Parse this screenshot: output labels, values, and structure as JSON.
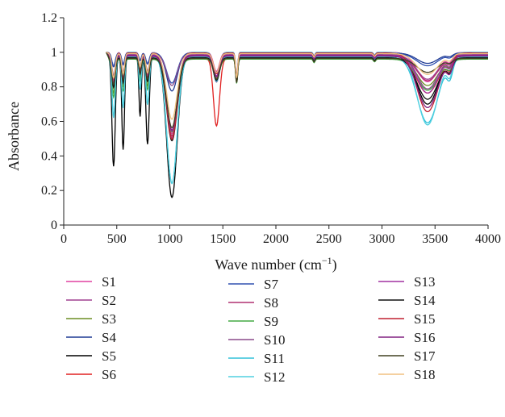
{
  "chart_data": {
    "type": "line",
    "xlabel": "Wave number (cm",
    "xlabel_sup": "−1",
    "xlabel_close": ")",
    "ylabel": "Absorbance",
    "xlim": [
      0,
      4000
    ],
    "ylim": [
      0,
      1.2
    ],
    "x_ticks": [
      "0",
      "500",
      "1000",
      "1500",
      "2000",
      "2500",
      "3000",
      "3500",
      "4000"
    ],
    "y_ticks": [
      "0",
      "0.2",
      "0.4",
      "0.6",
      "0.8",
      "1",
      "1.2"
    ],
    "grid": false,
    "legend_position": "bottom",
    "series": [
      {
        "name": "S1",
        "color": "#e040a0",
        "b1": 0.84,
        "p1": 0.53,
        "p3": 0.89,
        "p4": 0.83
      },
      {
        "name": "S2",
        "color": "#a04090",
        "b1": 0.82,
        "p1": 0.52,
        "p3": 0.9,
        "p4": 0.86
      },
      {
        "name": "S3",
        "color": "#6b8e23",
        "b1": 0.8,
        "p1": 0.55,
        "p3": 0.88,
        "p4": 0.84
      },
      {
        "name": "S4",
        "color": "#1f3a93",
        "b1": 0.92,
        "p1": 0.78,
        "p3": 0.86,
        "p4": 0.94
      },
      {
        "name": "S5",
        "color": "#000000",
        "b1": 0.36,
        "p1": 0.18,
        "p3": 0.86,
        "p4": 0.72
      },
      {
        "name": "S6",
        "color": "#e02020",
        "b1": 0.86,
        "p1": 0.55,
        "p3": 0.61,
        "p4": 0.8
      },
      {
        "name": "S7",
        "color": "#3050b0",
        "b1": 0.93,
        "p1": 0.83,
        "p3": 0.87,
        "p4": 0.93
      },
      {
        "name": "S8",
        "color": "#b03070",
        "b1": 0.82,
        "p1": 0.54,
        "p3": 0.88,
        "p4": 0.86
      },
      {
        "name": "S9",
        "color": "#44aa44",
        "b1": 0.78,
        "p1": 0.58,
        "p3": 0.88,
        "p4": 0.82
      },
      {
        "name": "S10",
        "color": "#8a4a8a",
        "b1": 0.88,
        "p1": 0.82,
        "p3": 0.84,
        "p4": 0.8
      },
      {
        "name": "S11",
        "color": "#30c0d8",
        "b1": 0.66,
        "p1": 0.27,
        "p3": 0.86,
        "p4": 0.62
      },
      {
        "name": "S12",
        "color": "#50d0e0",
        "b1": 0.62,
        "p1": 0.24,
        "p3": 0.86,
        "p4": 0.58
      },
      {
        "name": "S13",
        "color": "#a030a0",
        "b1": 0.84,
        "p1": 0.56,
        "p3": 0.88,
        "p4": 0.78
      },
      {
        "name": "S14",
        "color": "#101010",
        "b1": 0.83,
        "p1": 0.52,
        "p3": 0.87,
        "p4": 0.76
      },
      {
        "name": "S15",
        "color": "#c02030",
        "b1": 0.82,
        "p1": 0.5,
        "p3": 0.88,
        "p4": 0.66
      },
      {
        "name": "S16",
        "color": "#802080",
        "b1": 0.84,
        "p1": 0.57,
        "p3": 0.88,
        "p4": 0.7
      },
      {
        "name": "S17",
        "color": "#404020",
        "b1": 0.85,
        "p1": 0.6,
        "p3": 0.88,
        "p4": 0.92
      },
      {
        "name": "S18",
        "color": "#f0c080",
        "b1": 0.86,
        "p1": 0.62,
        "p3": 0.89,
        "p4": 0.88
      }
    ]
  }
}
